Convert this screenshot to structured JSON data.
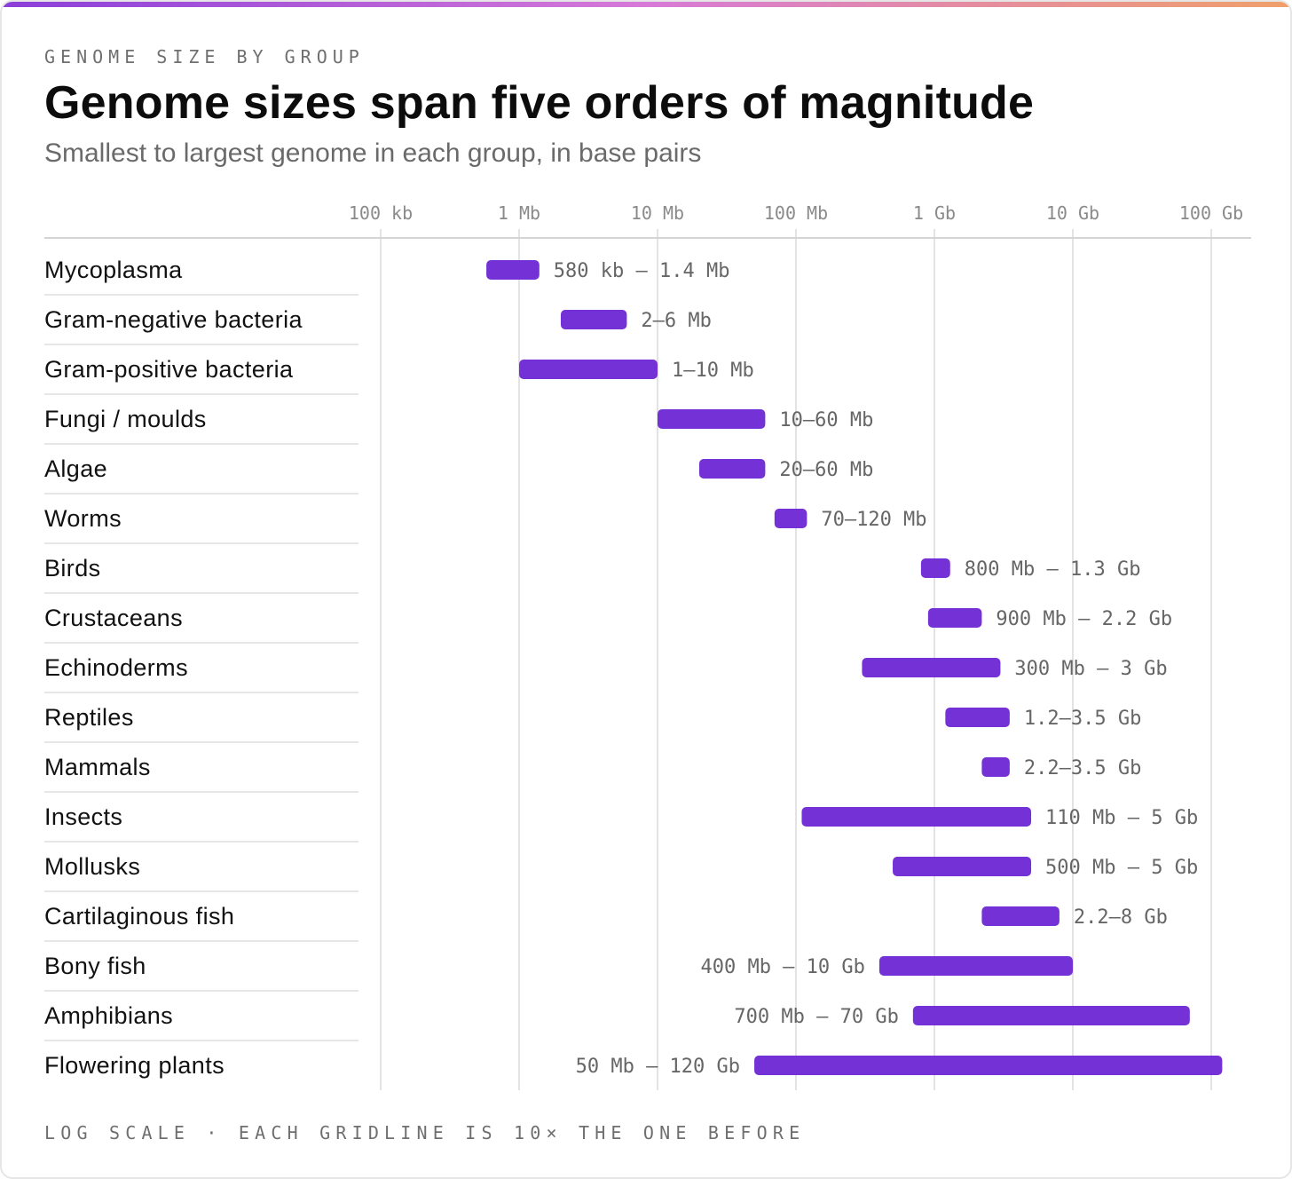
{
  "header": {
    "eyebrow": "GENOME SIZE BY GROUP",
    "title": "Genome sizes span five orders of magnitude",
    "subtitle": "Smallest to largest genome in each group, in base pairs"
  },
  "footer": {
    "note": "LOG SCALE · EACH GRIDLINE IS 10× THE ONE BEFORE"
  },
  "colors": {
    "bar": "#7432d6",
    "gridline": "#e3e3e3",
    "axis_rule": "#d4d4d4",
    "row_divider": "#dedede",
    "range_label": "#666666",
    "tick_label": "#8a8a8a",
    "gradient_start": "#8b3fd9",
    "gradient_mid": "#d77ad8",
    "gradient_end": "#f0a06a"
  },
  "chart_data": {
    "type": "range-bar",
    "scale": "log",
    "x_unit": "base pairs",
    "x_ticks": [
      {
        "value": 100000,
        "label": "100 kb"
      },
      {
        "value": 1000000,
        "label": "1 Mb"
      },
      {
        "value": 10000000,
        "label": "10 Mb"
      },
      {
        "value": 100000000,
        "label": "100 Mb"
      },
      {
        "value": 1000000000,
        "label": "1 Gb"
      },
      {
        "value": 10000000000,
        "label": "10 Gb"
      },
      {
        "value": 100000000000,
        "label": "100 Gb"
      }
    ],
    "rows": [
      {
        "group": "Mycoplasma",
        "min": 580000,
        "max": 1400000,
        "label": "580 kb – 1.4 Mb",
        "label_side": "right"
      },
      {
        "group": "Gram-negative bacteria",
        "min": 2000000,
        "max": 6000000,
        "label": "2–6 Mb",
        "label_side": "right"
      },
      {
        "group": "Gram-positive bacteria",
        "min": 1000000,
        "max": 10000000,
        "label": "1–10 Mb",
        "label_side": "right"
      },
      {
        "group": "Fungi / moulds",
        "min": 10000000,
        "max": 60000000,
        "label": "10–60 Mb",
        "label_side": "right"
      },
      {
        "group": "Algae",
        "min": 20000000,
        "max": 60000000,
        "label": "20–60 Mb",
        "label_side": "right"
      },
      {
        "group": "Worms",
        "min": 70000000,
        "max": 120000000,
        "label": "70–120 Mb",
        "label_side": "right"
      },
      {
        "group": "Birds",
        "min": 800000000,
        "max": 1300000000,
        "label": "800 Mb – 1.3 Gb",
        "label_side": "right"
      },
      {
        "group": "Crustaceans",
        "min": 900000000,
        "max": 2200000000,
        "label": "900 Mb – 2.2 Gb",
        "label_side": "right"
      },
      {
        "group": "Echinoderms",
        "min": 300000000,
        "max": 3000000000,
        "label": "300 Mb – 3 Gb",
        "label_side": "right"
      },
      {
        "group": "Reptiles",
        "min": 1200000000,
        "max": 3500000000,
        "label": "1.2–3.5 Gb",
        "label_side": "right"
      },
      {
        "group": "Mammals",
        "min": 2200000000,
        "max": 3500000000,
        "label": "2.2–3.5 Gb",
        "label_side": "right"
      },
      {
        "group": "Insects",
        "min": 110000000,
        "max": 5000000000,
        "label": "110 Mb – 5 Gb",
        "label_side": "right"
      },
      {
        "group": "Mollusks",
        "min": 500000000,
        "max": 5000000000,
        "label": "500 Mb – 5 Gb",
        "label_side": "right"
      },
      {
        "group": "Cartilaginous fish",
        "min": 2200000000,
        "max": 8000000000,
        "label": "2.2–8 Gb",
        "label_side": "right"
      },
      {
        "group": "Bony fish",
        "min": 400000000,
        "max": 10000000000,
        "label": "400 Mb – 10 Gb",
        "label_side": "left"
      },
      {
        "group": "Amphibians",
        "min": 700000000,
        "max": 70000000000,
        "label": "700 Mb – 70 Gb",
        "label_side": "left"
      },
      {
        "group": "Flowering plants",
        "min": 50000000,
        "max": 120000000000,
        "label": "50 Mb – 120 Gb",
        "label_side": "left"
      }
    ]
  }
}
